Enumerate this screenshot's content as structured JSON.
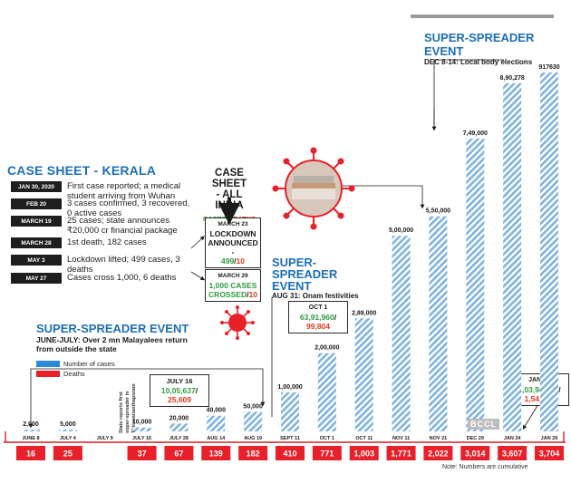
{
  "case_sheet": {
    "title": "CASE SHEET - KERALA",
    "rows": [
      {
        "date": "JAN 30, 2020",
        "text": "First case reported; a medical student arriving from Wuhan"
      },
      {
        "date": "FEB 20",
        "text": "3 cases confirmed, 3 recovered, 0 active cases"
      },
      {
        "date": "MARCH 19",
        "text": "25 cases; state announces ₹20,000 cr financial package"
      },
      {
        "date": "MARCH 28",
        "text": "1st death, 182 cases"
      },
      {
        "date": "MAY 3",
        "text": "Lockdown lifted; 499 cases, 3 deaths"
      },
      {
        "date": "MAY 27",
        "text": "Cases cross 1,000, 6 deaths"
      }
    ]
  },
  "india": {
    "title_line1": "CASE SHEET",
    "title_line2": "- ALL INDIA",
    "subtitle_cases": "CASES",
    "subtitle_sep": "/",
    "subtitle_deaths": "DEATHS",
    "box1": {
      "date": "MARCH 23",
      "line1": "LOCKDOWN",
      "line2": "ANNOUNCED -",
      "cases": "499",
      "sep": "/",
      "deaths": "10"
    },
    "box2": {
      "date": "MARCH 29",
      "line1": "1,000 CASES",
      "line2": "CROSSED",
      "sep": "/",
      "deaths": "10"
    }
  },
  "super_spreaders": [
    {
      "title": "SUPER-SPREADER EVENT",
      "sub1": "JUNE-JULY: Over 2 mn Malayalees return",
      "sub2": "from outside the state"
    },
    {
      "title1": "SUPER-SPREADER",
      "title2": "EVENT",
      "sub": "AUG 31: Onam festivities"
    },
    {
      "title": "SUPER-SPREADER EVENT",
      "sub": "DEC 8-14: Local body elections"
    }
  ],
  "legend": {
    "cases": "Number of cases",
    "deaths": "Deaths"
  },
  "callouts": {
    "july16": {
      "date": "JULY 16",
      "cases": "10,05,637",
      "sep": "/",
      "deaths": "25,609"
    },
    "oct1": {
      "date": "OCT 1",
      "cases": "63,91,960",
      "sep": "/",
      "deaths": "99,804"
    },
    "jan29": {
      "date": "JAN 29",
      "cases": "1,03,94,352",
      "sep": "/",
      "deaths": "1,54,010"
    }
  },
  "vertical_note": [
    "State reports first",
    "super-spreader in",
    "Thiruvananthapuram"
  ],
  "note": "Note: Numbers are cumulative",
  "watermark": "BCCL",
  "colors": {
    "accent": "#1c6fb8",
    "bar": "#7fb3e0",
    "death": "#e8202a",
    "green": "#2e9a3c"
  },
  "chart_data": {
    "type": "bar",
    "categories": [
      "JUNE 8",
      "JULY 4",
      "JULY 9",
      "JULY 16",
      "JULY 28",
      "AUG 14",
      "AUG 19",
      "SEPT 11",
      "OCT 1",
      "OCT 11",
      "NOV 11",
      "NOV 21",
      "DEC 29",
      "JAN 24",
      "JAN 29"
    ],
    "series": [
      {
        "name": "Number of cases",
        "values": [
          2000,
          5000,
          null,
          10000,
          20000,
          40000,
          50000,
          100000,
          200000,
          289000,
          500000,
          550000,
          749000,
          890278,
          917630
        ]
      },
      {
        "name": "Deaths",
        "values": [
          16,
          25,
          null,
          37,
          67,
          139,
          182,
          410,
          771,
          1003,
          1771,
          2022,
          3014,
          3607,
          3704
        ]
      }
    ],
    "value_labels": [
      "2,000",
      "5,000",
      "",
      "10,000",
      "20,000",
      "40,000",
      "50,000",
      "1,00,000",
      "2,00,000",
      "2,89,000",
      "5,00,000",
      "5,50,000",
      "7,49,000",
      "8,90,278",
      "917630"
    ],
    "death_labels": [
      "16",
      "25",
      "",
      "37",
      "67",
      "139",
      "182",
      "410",
      "771",
      "1,003",
      "1,771",
      "2,022",
      "3,014",
      "3,607",
      "3,704"
    ],
    "ylim": [
      0,
      917630
    ],
    "grid": false
  }
}
